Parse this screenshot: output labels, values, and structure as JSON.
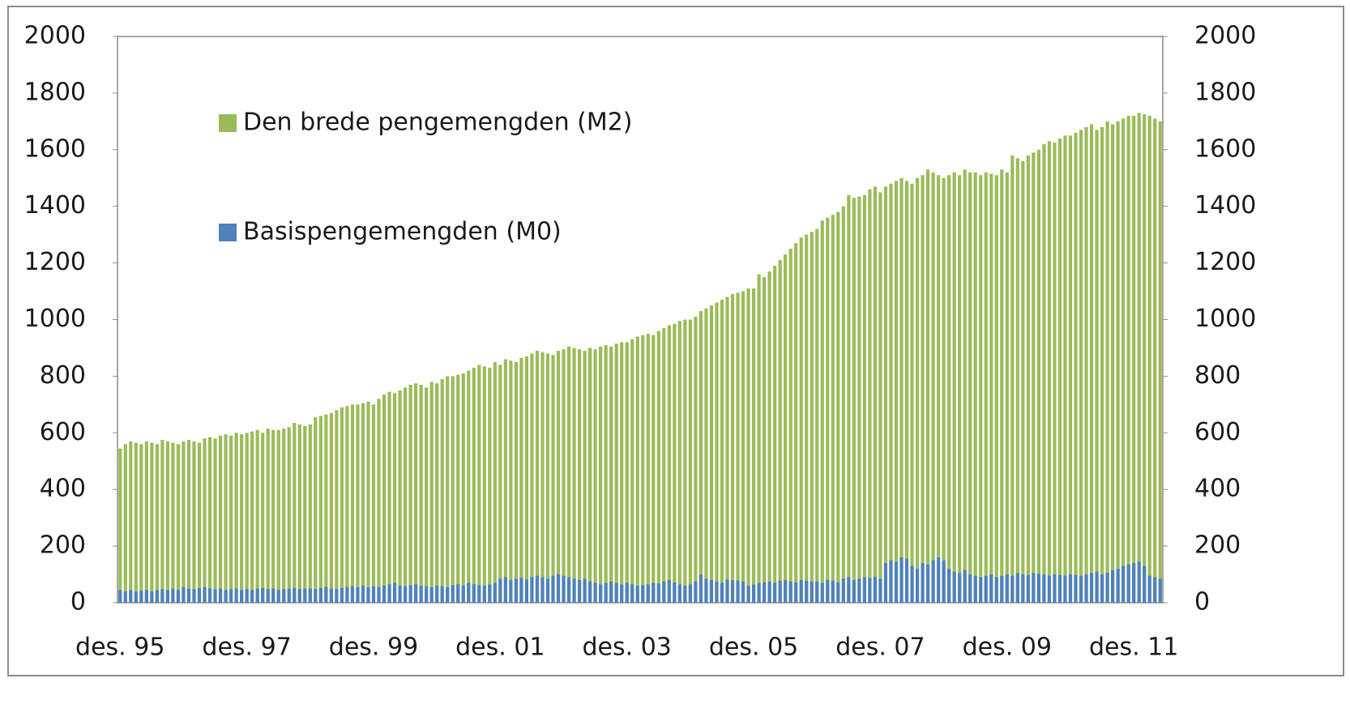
{
  "chart_data": {
    "type": "bar",
    "categories": [
      "des. 95",
      null,
      null,
      null,
      null,
      null,
      null,
      null,
      null,
      null,
      null,
      null,
      null,
      null,
      null,
      null,
      null,
      null,
      null,
      null,
      null,
      null,
      null,
      null,
      "des. 97",
      null,
      null,
      null,
      null,
      null,
      null,
      null,
      null,
      null,
      null,
      null,
      null,
      null,
      null,
      null,
      null,
      null,
      null,
      null,
      null,
      null,
      null,
      null,
      "des. 99",
      null,
      null,
      null,
      null,
      null,
      null,
      null,
      null,
      null,
      null,
      null,
      null,
      null,
      null,
      null,
      null,
      null,
      null,
      null,
      null,
      null,
      null,
      null,
      "des. 01",
      null,
      null,
      null,
      null,
      null,
      null,
      null,
      null,
      null,
      null,
      null,
      null,
      null,
      null,
      null,
      null,
      null,
      null,
      null,
      null,
      null,
      null,
      null,
      "des. 03",
      null,
      null,
      null,
      null,
      null,
      null,
      null,
      null,
      null,
      null,
      null,
      null,
      null,
      null,
      null,
      null,
      null,
      null,
      null,
      null,
      null,
      null,
      null,
      "des. 05",
      null,
      null,
      null,
      null,
      null,
      null,
      null,
      null,
      null,
      null,
      null,
      null,
      null,
      null,
      null,
      null,
      null,
      null,
      null,
      null,
      null,
      null,
      null,
      "des. 07",
      null,
      null,
      null,
      null,
      null,
      null,
      null,
      null,
      null,
      null,
      null,
      null,
      null,
      null,
      null,
      null,
      null,
      null,
      null,
      null,
      null,
      null,
      null,
      "des. 09",
      null,
      null,
      null,
      null,
      null,
      null,
      null,
      null,
      null,
      null,
      null,
      null,
      null,
      null,
      null,
      null,
      null,
      null,
      null,
      null,
      null,
      null,
      null,
      "des. 11",
      null,
      null,
      null,
      null,
      null
    ],
    "series": [
      {
        "name": "Den brede pengemengden (M2)",
        "color": "#9bbb59",
        "values": [
          545,
          560,
          570,
          565,
          560,
          570,
          565,
          560,
          575,
          570,
          565,
          560,
          570,
          575,
          570,
          565,
          580,
          585,
          580,
          590,
          595,
          590,
          600,
          595,
          600,
          605,
          610,
          600,
          615,
          610,
          610,
          615,
          620,
          635,
          630,
          625,
          630,
          655,
          660,
          665,
          670,
          680,
          690,
          695,
          700,
          700,
          705,
          710,
          700,
          720,
          735,
          745,
          740,
          750,
          760,
          770,
          775,
          770,
          760,
          780,
          775,
          790,
          800,
          800,
          805,
          810,
          820,
          830,
          840,
          835,
          830,
          850,
          840,
          860,
          855,
          850,
          865,
          870,
          880,
          890,
          885,
          880,
          875,
          890,
          895,
          905,
          900,
          895,
          890,
          900,
          895,
          905,
          910,
          905,
          915,
          920,
          920,
          930,
          940,
          945,
          950,
          945,
          960,
          970,
          980,
          985,
          995,
          1000,
          1000,
          1010,
          1030,
          1040,
          1050,
          1060,
          1070,
          1080,
          1090,
          1095,
          1100,
          1110,
          1110,
          1160,
          1150,
          1170,
          1190,
          1210,
          1230,
          1250,
          1270,
          1290,
          1300,
          1310,
          1320,
          1350,
          1360,
          1370,
          1380,
          1400,
          1440,
          1430,
          1435,
          1440,
          1460,
          1470,
          1450,
          1470,
          1480,
          1490,
          1500,
          1490,
          1480,
          1500,
          1510,
          1530,
          1520,
          1510,
          1500,
          1510,
          1520,
          1510,
          1530,
          1520,
          1520,
          1510,
          1520,
          1515,
          1510,
          1530,
          1520,
          1580,
          1570,
          1560,
          1580,
          1590,
          1600,
          1620,
          1630,
          1625,
          1640,
          1650,
          1650,
          1660,
          1670,
          1680,
          1690,
          1670,
          1680,
          1700,
          1690,
          1700,
          1710,
          1720,
          1720,
          1730,
          1725,
          1720,
          1710,
          1700
        ]
      },
      {
        "name": "Basispengemengden (M0)",
        "color": "#4f81bd",
        "values": [
          45,
          40,
          45,
          40,
          42,
          45,
          40,
          45,
          48,
          45,
          50,
          45,
          55,
          50,
          48,
          52,
          55,
          50,
          48,
          50,
          45,
          48,
          50,
          45,
          48,
          45,
          50,
          52,
          48,
          50,
          45,
          48,
          50,
          52,
          48,
          50,
          50,
          48,
          52,
          55,
          50,
          48,
          52,
          55,
          58,
          55,
          60,
          55,
          58,
          55,
          60,
          65,
          70,
          60,
          58,
          62,
          65,
          60,
          58,
          55,
          60,
          58,
          55,
          62,
          65,
          60,
          70,
          65,
          62,
          60,
          65,
          70,
          85,
          90,
          80,
          85,
          88,
          82,
          90,
          95,
          90,
          85,
          95,
          100,
          95,
          90,
          85,
          80,
          85,
          75,
          70,
          65,
          70,
          75,
          70,
          65,
          70,
          65,
          60,
          62,
          65,
          70,
          68,
          75,
          80,
          72,
          65,
          60,
          65,
          75,
          100,
          85,
          80,
          75,
          70,
          82,
          80,
          78,
          75,
          60,
          65,
          70,
          72,
          75,
          70,
          78,
          80,
          75,
          72,
          80,
          78,
          75,
          75,
          70,
          80,
          78,
          72,
          85,
          90,
          80,
          85,
          90,
          88,
          92,
          85,
          140,
          150,
          145,
          160,
          155,
          130,
          120,
          140,
          135,
          150,
          160,
          150,
          120,
          110,
          105,
          115,
          100,
          95,
          90,
          95,
          100,
          90,
          95,
          100,
          95,
          105,
          100,
          98,
          105,
          102,
          100,
          95,
          100,
          98,
          95,
          100,
          98,
          95,
          100,
          105,
          110,
          100,
          105,
          115,
          120,
          130,
          135,
          140,
          145,
          130,
          95,
          90,
          85
        ]
      }
    ],
    "ylim": [
      0,
      2000
    ],
    "yticks": [
      0,
      200,
      400,
      600,
      800,
      1000,
      1200,
      1400,
      1600,
      1800,
      2000
    ],
    "y2lim": [
      0,
      2000
    ],
    "y2ticks": [
      0,
      200,
      400,
      600,
      800,
      1000,
      1200,
      1400,
      1600,
      1800,
      2000
    ]
  }
}
